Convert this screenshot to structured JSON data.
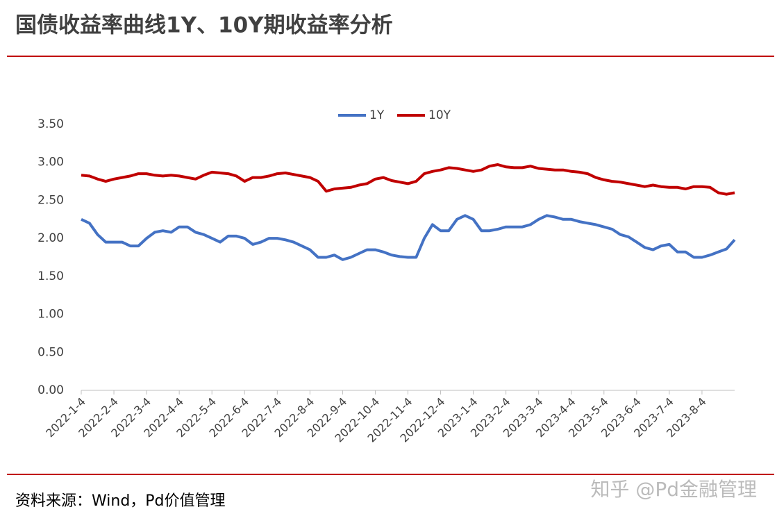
{
  "chart_data": {
    "type": "line",
    "title": "国债收益率曲线1Y、10Y期收益率分析",
    "source": "资料来源：Wind，Pd价值管理",
    "watermark": "知乎 @Pd金融管理",
    "categories": [
      "2022-1-4",
      null,
      null,
      null,
      "2022-2-4",
      null,
      null,
      null,
      "2022-3-4",
      null,
      null,
      null,
      "2022-4-4",
      null,
      null,
      null,
      "2022-5-4",
      null,
      null,
      null,
      "2022-6-4",
      null,
      null,
      null,
      "2022-7-4",
      null,
      null,
      null,
      "2022-8-4",
      null,
      null,
      null,
      "2022-9-4",
      null,
      null,
      null,
      "2022-10-4",
      null,
      null,
      null,
      "2022-11-4",
      null,
      null,
      null,
      "2022-12-4",
      null,
      null,
      null,
      "2023-1-4",
      null,
      null,
      null,
      "2023-2-4",
      null,
      null,
      null,
      "2023-3-4",
      null,
      null,
      null,
      "2023-4-4",
      null,
      null,
      null,
      "2023-5-4",
      null,
      null,
      null,
      "2023-6-4",
      null,
      null,
      null,
      "2023-7-4",
      null,
      null,
      null,
      "2023-8-4",
      null,
      null,
      null,
      null
    ],
    "series": [
      {
        "name": "1Y",
        "color": "#4472c4",
        "values": [
          2.25,
          2.2,
          2.05,
          1.95,
          1.95,
          1.95,
          1.9,
          1.9,
          2.0,
          2.08,
          2.1,
          2.08,
          2.15,
          2.15,
          2.08,
          2.05,
          2.0,
          1.95,
          2.03,
          2.03,
          2.0,
          1.92,
          1.95,
          2.0,
          2.0,
          1.98,
          1.95,
          1.9,
          1.85,
          1.75,
          1.75,
          1.78,
          1.72,
          1.75,
          1.8,
          1.85,
          1.85,
          1.82,
          1.78,
          1.76,
          1.75,
          1.75,
          2.0,
          2.18,
          2.1,
          2.1,
          2.25,
          2.3,
          2.25,
          2.1,
          2.1,
          2.12,
          2.15,
          2.15,
          2.15,
          2.18,
          2.25,
          2.3,
          2.28,
          2.25,
          2.25,
          2.22,
          2.2,
          2.18,
          2.15,
          2.12,
          2.05,
          2.02,
          1.95,
          1.88,
          1.85,
          1.9,
          1.92,
          1.82,
          1.82,
          1.75,
          1.75,
          1.78,
          1.82,
          1.86,
          1.98
        ]
      },
      {
        "name": "10Y",
        "color": "#c00000",
        "values": [
          2.83,
          2.82,
          2.78,
          2.75,
          2.78,
          2.8,
          2.82,
          2.85,
          2.85,
          2.83,
          2.82,
          2.83,
          2.82,
          2.8,
          2.78,
          2.83,
          2.87,
          2.86,
          2.85,
          2.82,
          2.75,
          2.8,
          2.8,
          2.82,
          2.85,
          2.86,
          2.84,
          2.82,
          2.8,
          2.75,
          2.62,
          2.65,
          2.66,
          2.67,
          2.7,
          2.72,
          2.78,
          2.8,
          2.76,
          2.74,
          2.72,
          2.75,
          2.85,
          2.88,
          2.9,
          2.93,
          2.92,
          2.9,
          2.88,
          2.9,
          2.95,
          2.97,
          2.94,
          2.93,
          2.93,
          2.95,
          2.92,
          2.91,
          2.9,
          2.9,
          2.88,
          2.87,
          2.85,
          2.8,
          2.77,
          2.75,
          2.74,
          2.72,
          2.7,
          2.68,
          2.7,
          2.68,
          2.67,
          2.67,
          2.65,
          2.68,
          2.68,
          2.67,
          2.6,
          2.58,
          2.6
        ]
      }
    ],
    "ylim": [
      0,
      3.5
    ],
    "yticks": [
      {
        "value": 0,
        "label": "0.00"
      },
      {
        "value": 0.5,
        "label": "0.50"
      },
      {
        "value": 1,
        "label": "1.00"
      },
      {
        "value": 1.5,
        "label": "1.50"
      },
      {
        "value": 2,
        "label": "2.00"
      },
      {
        "value": 2.5,
        "label": "2.50"
      },
      {
        "value": 3,
        "label": "3.00"
      },
      {
        "value": 3.5,
        "label": "3.50"
      }
    ],
    "grid": false,
    "legend": "top"
  }
}
